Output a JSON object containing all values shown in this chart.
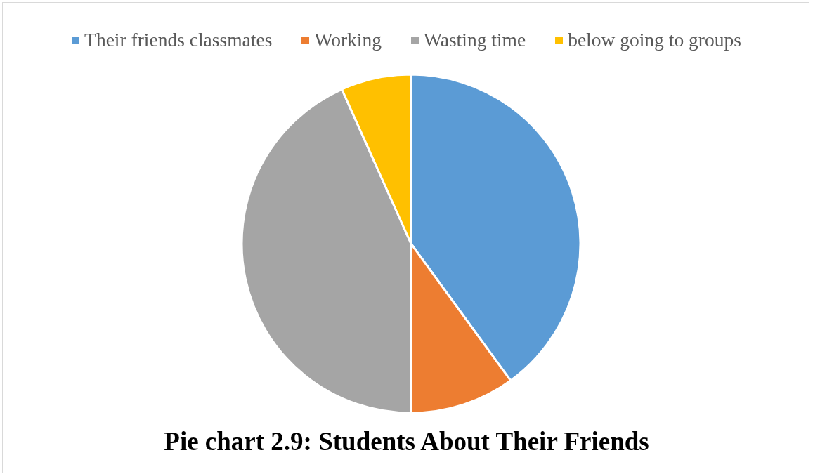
{
  "chart_data": {
    "type": "pie",
    "title": "Pie chart 2.9: Students About Their Friends",
    "categories": [
      "Their friends classmates",
      "Working",
      "Wasting time",
      "below going to groups"
    ],
    "values": [
      40,
      10,
      43.3,
      6.7
    ],
    "colors": [
      "#5b9bd5",
      "#ed7d31",
      "#a5a5a5",
      "#ffc000"
    ],
    "legend": "top"
  }
}
